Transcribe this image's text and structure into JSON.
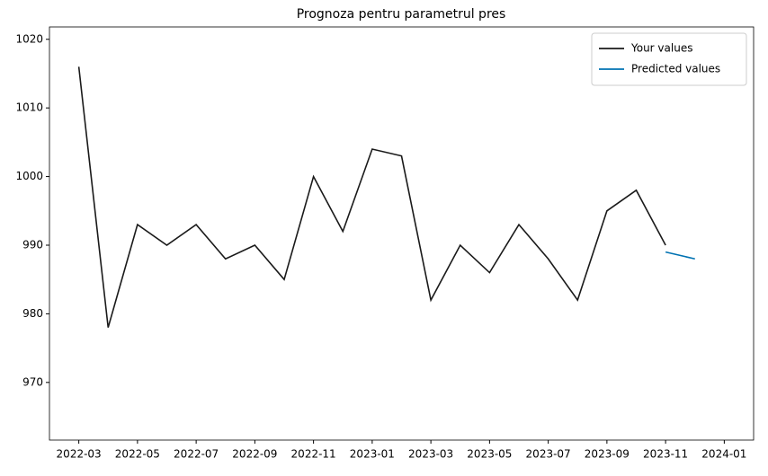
{
  "chart_data": {
    "type": "line",
    "title": "Prognoza pentru parametrul pres",
    "x": [
      "2022-03",
      "2022-04",
      "2022-05",
      "2022-06",
      "2022-07",
      "2022-08",
      "2022-09",
      "2022-10",
      "2022-11",
      "2022-12",
      "2023-01",
      "2023-02",
      "2023-03",
      "2023-04",
      "2023-05",
      "2023-06",
      "2023-07",
      "2023-08",
      "2023-09",
      "2023-10",
      "2023-11",
      "2023-12"
    ],
    "series": [
      {
        "name": "Your values",
        "color": "#1a1a1a",
        "values": [
          1016,
          978,
          993,
          990,
          993,
          988,
          990,
          985,
          1000,
          992,
          1004,
          1003,
          982,
          990,
          986,
          993,
          988,
          982,
          995,
          998,
          990,
          null
        ]
      },
      {
        "name": "Predicted values",
        "color": "#0072b2",
        "values": [
          null,
          null,
          null,
          null,
          null,
          null,
          null,
          null,
          null,
          null,
          null,
          null,
          null,
          null,
          null,
          null,
          null,
          null,
          null,
          null,
          989,
          988
        ]
      }
    ],
    "xlim": [
      "2022-02",
      "2024-02"
    ],
    "xticks": [
      "2022-03",
      "2022-05",
      "2022-07",
      "2022-09",
      "2022-11",
      "2023-01",
      "2023-03",
      "2023-05",
      "2023-07",
      "2023-09",
      "2023-11",
      "2024-01"
    ],
    "ylim": [
      961.6,
      1021.8
    ],
    "yticks": [
      970,
      980,
      990,
      1000,
      1010,
      1020
    ],
    "grid": false,
    "legend": "upper right"
  }
}
